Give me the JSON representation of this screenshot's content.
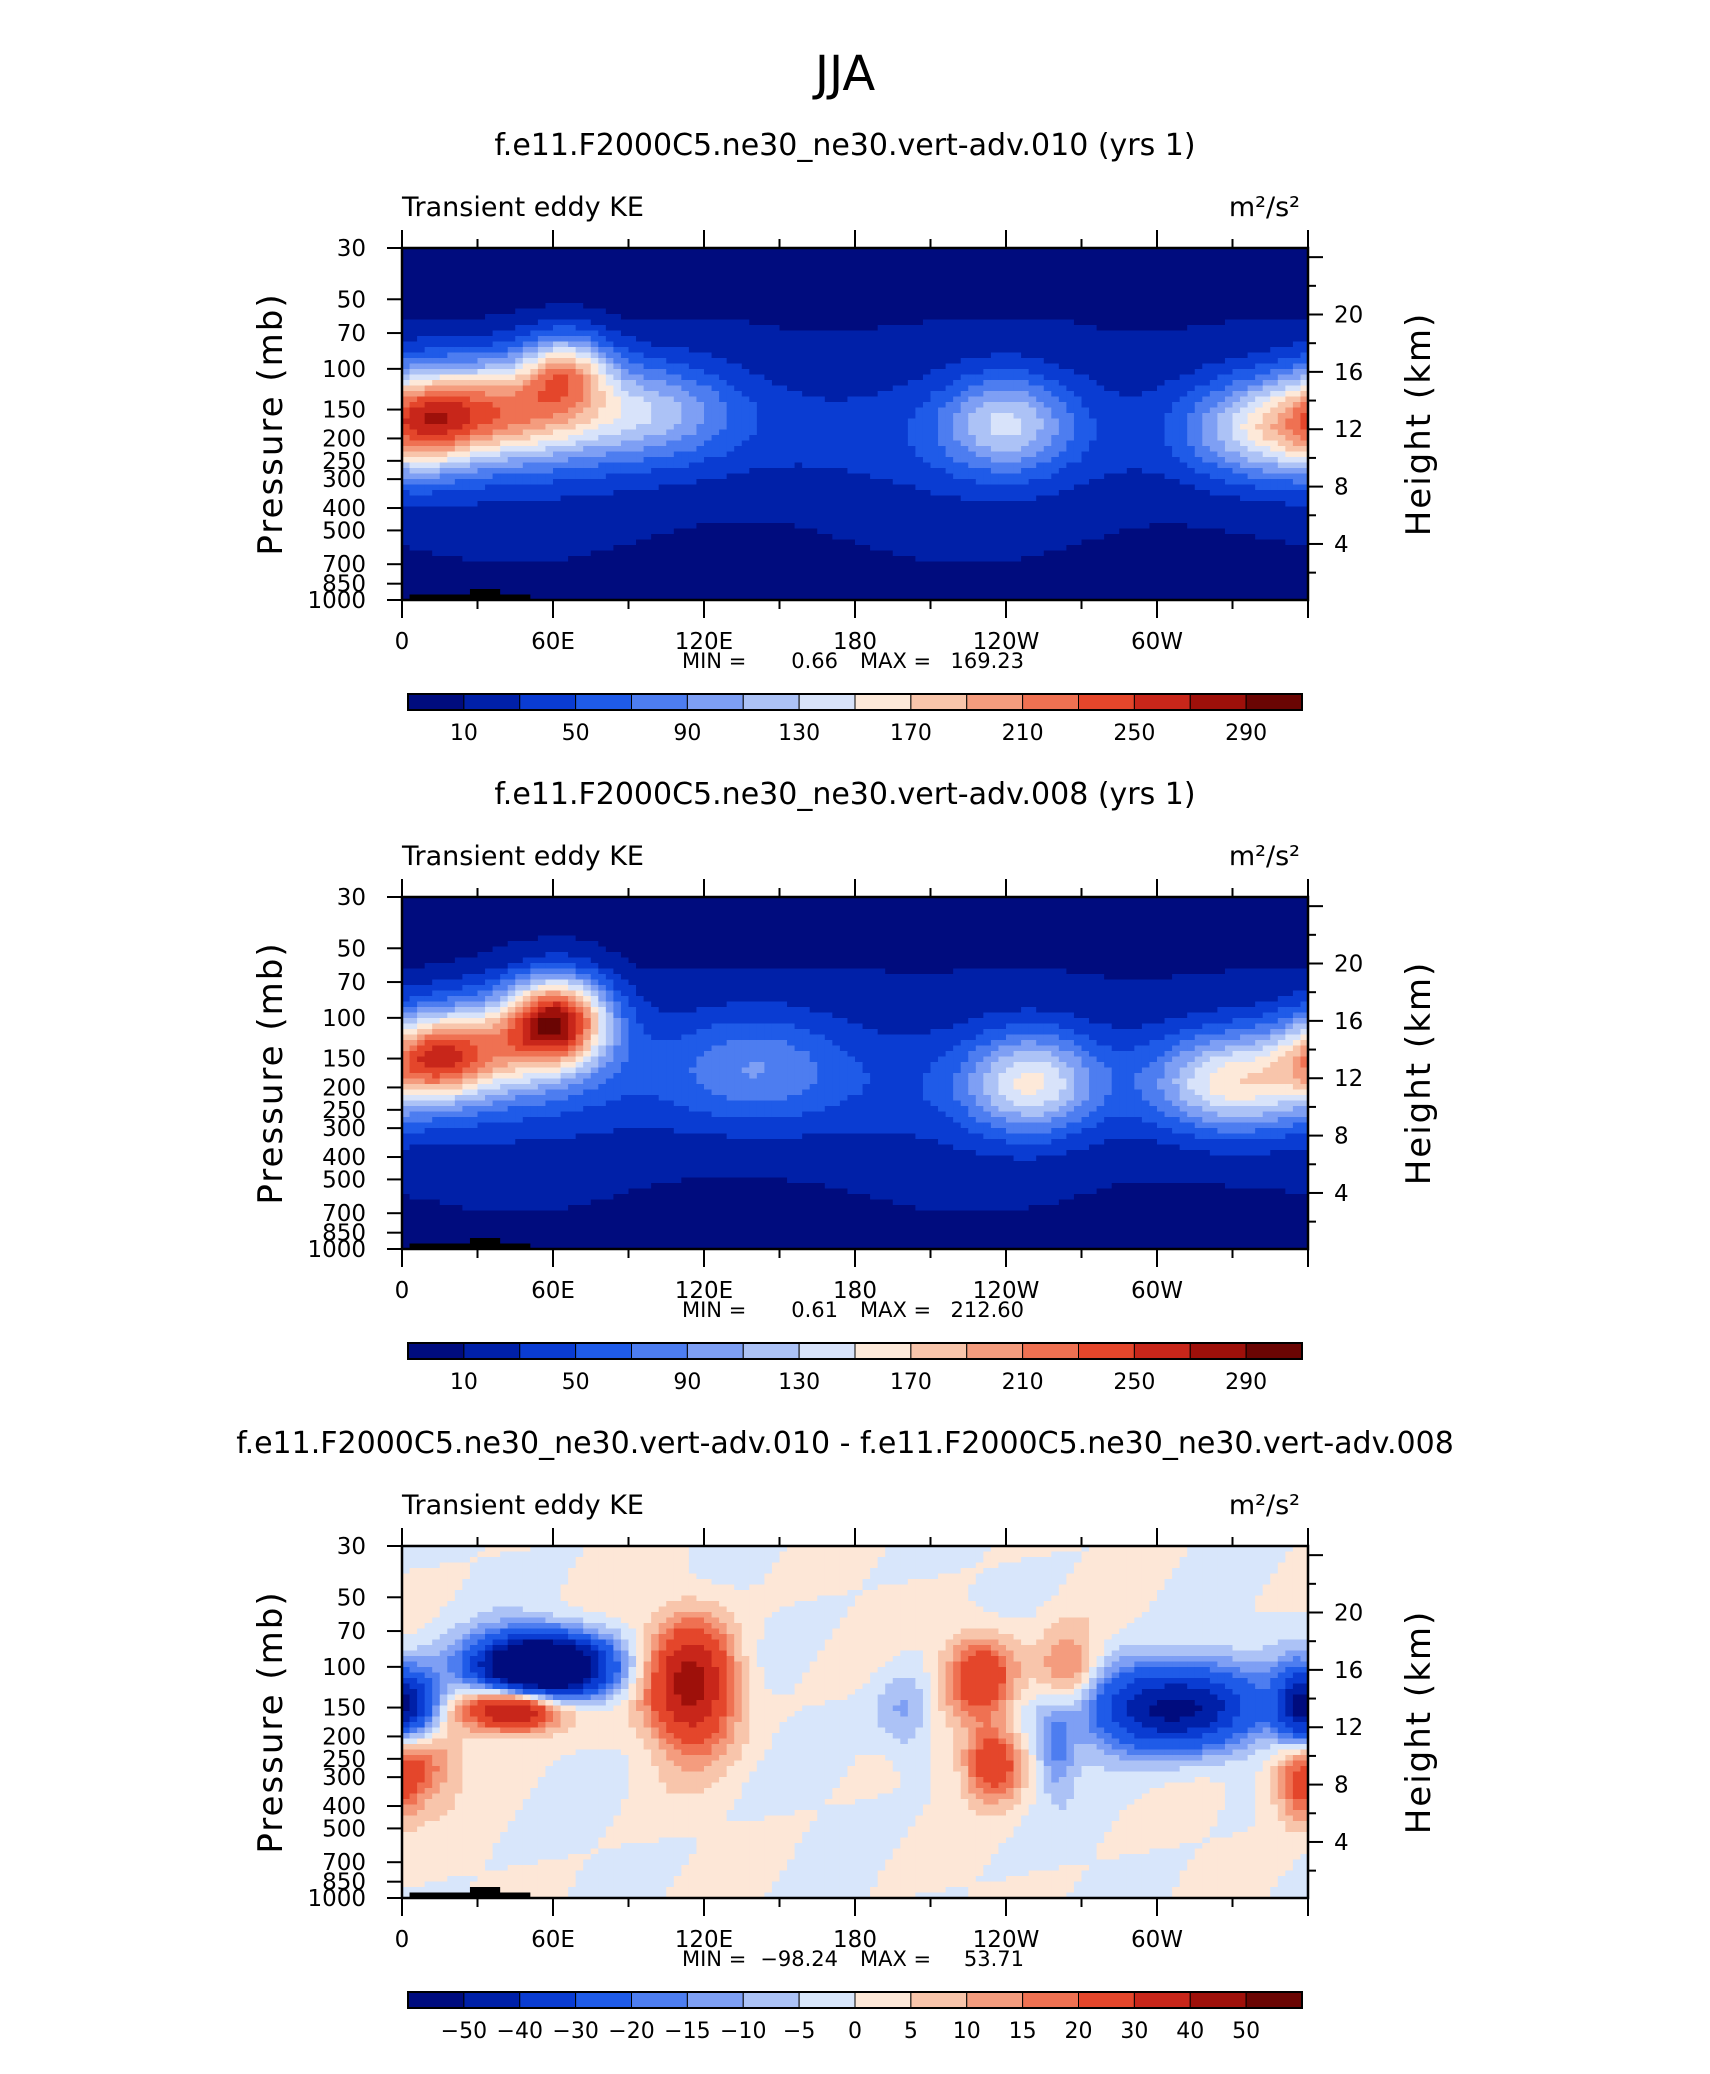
{
  "page_title": "JJA",
  "chart_data": [
    {
      "type": "heatmap",
      "title": "f.e11.F2000C5.ne30_ne30.vert-adv.010 (yrs 1)",
      "subtitle_left": "Transient eddy KE",
      "units": "m²/s²",
      "ylabel": "Pressure (mb)",
      "ylabel_right": "Height (km)",
      "x_ticks": [
        "0",
        "60E",
        "120E",
        "180",
        "120W",
        "60W"
      ],
      "y_ticks": [
        "30",
        "50",
        "70",
        "100",
        "150",
        "200",
        "250",
        "300",
        "400",
        "500",
        "700",
        "850",
        "1000"
      ],
      "y_ticks_right": [
        "20",
        "16",
        "12",
        "8",
        "4"
      ],
      "min_label": "MIN =",
      "min_value": "0.66",
      "max_label": "MAX =",
      "max_value": "169.23",
      "colorbar_labels": [
        "10",
        "50",
        "90",
        "130",
        "170",
        "210",
        "250",
        "290"
      ],
      "zlim": [
        0,
        300
      ],
      "features": [
        {
          "lon": 40,
          "p": 150,
          "value": 169,
          "sx": 28,
          "sy": 0.35
        },
        {
          "lon": 65,
          "p": 100,
          "value": 120,
          "sx": 12,
          "sy": 0.25
        },
        {
          "lon": 100,
          "p": 150,
          "value": 80,
          "sx": 25,
          "sy": 0.35
        },
        {
          "lon": 240,
          "p": 170,
          "value": 95,
          "sx": 18,
          "sy": 0.35
        },
        {
          "lon": 340,
          "p": 180,
          "value": 105,
          "sx": 20,
          "sy": 0.35
        },
        {
          "lon": 10,
          "p": 170,
          "value": 110,
          "sx": 15,
          "sy": 0.35
        }
      ]
    },
    {
      "type": "heatmap",
      "title": "f.e11.F2000C5.ne30_ne30.vert-adv.008 (yrs 1)",
      "subtitle_left": "Transient eddy KE",
      "units": "m²/s²",
      "ylabel": "Pressure (mb)",
      "ylabel_right": "Height (km)",
      "x_ticks": [
        "0",
        "60E",
        "120E",
        "180",
        "120W",
        "60W"
      ],
      "y_ticks": [
        "30",
        "50",
        "70",
        "100",
        "150",
        "200",
        "250",
        "300",
        "400",
        "500",
        "700",
        "850",
        "1000"
      ],
      "y_ticks_right": [
        "20",
        "16",
        "12",
        "8",
        "4"
      ],
      "min_label": "MIN =",
      "min_value": "0.61",
      "max_label": "MAX =",
      "max_value": "212.60",
      "colorbar_labels": [
        "10",
        "50",
        "90",
        "130",
        "170",
        "210",
        "250",
        "290"
      ],
      "zlim": [
        0,
        300
      ],
      "features": [
        {
          "lon": 62,
          "p": 100,
          "value": 212,
          "sx": 14,
          "sy": 0.3
        },
        {
          "lon": 12,
          "p": 150,
          "value": 150,
          "sx": 16,
          "sy": 0.3
        },
        {
          "lon": 40,
          "p": 130,
          "value": 120,
          "sx": 25,
          "sy": 0.35
        },
        {
          "lon": 250,
          "p": 190,
          "value": 115,
          "sx": 18,
          "sy": 0.35
        },
        {
          "lon": 330,
          "p": 190,
          "value": 130,
          "sx": 22,
          "sy": 0.35
        },
        {
          "lon": 140,
          "p": 160,
          "value": 60,
          "sx": 25,
          "sy": 0.4
        }
      ]
    },
    {
      "type": "heatmap",
      "title": "f.e11.F2000C5.ne30_ne30.vert-adv.010 - f.e11.F2000C5.ne30_ne30.vert-adv.008",
      "subtitle_left": "Transient eddy KE",
      "units": "m²/s²",
      "ylabel": "Pressure (mb)",
      "ylabel_right": "Height (km)",
      "x_ticks": [
        "0",
        "60E",
        "120E",
        "180",
        "120W",
        "60W"
      ],
      "y_ticks": [
        "30",
        "50",
        "70",
        "100",
        "150",
        "200",
        "250",
        "300",
        "400",
        "500",
        "700",
        "850",
        "1000"
      ],
      "y_ticks_right": [
        "20",
        "16",
        "12",
        "8",
        "4"
      ],
      "min_label": "MIN =",
      "min_value": "−98.24",
      "max_label": "MAX =",
      "max_value": "53.71",
      "colorbar_labels": [
        "−50",
        "−40",
        "−30",
        "−20",
        "−15",
        "−10",
        "−5",
        "0",
        "5",
        "10",
        "15",
        "20",
        "30",
        "40",
        "50"
      ],
      "zlim": [
        -60,
        60
      ],
      "features": [
        {
          "lon": 55,
          "p": 100,
          "value": -98,
          "sx": 18,
          "sy": 0.22
        },
        {
          "lon": 5,
          "p": 150,
          "value": -40,
          "sx": 8,
          "sy": 0.25
        },
        {
          "lon": 45,
          "p": 150,
          "value": 54,
          "sx": 14,
          "sy": 0.16
        },
        {
          "lon": 115,
          "p": 120,
          "value": 45,
          "sx": 12,
          "sy": 0.45
        },
        {
          "lon": 230,
          "p": 110,
          "value": 30,
          "sx": 10,
          "sy": 0.3
        },
        {
          "lon": 235,
          "p": 260,
          "value": 30,
          "sx": 8,
          "sy": 0.25
        },
        {
          "lon": 265,
          "p": 110,
          "value": 22,
          "sx": 9,
          "sy": 0.3
        },
        {
          "lon": 305,
          "p": 150,
          "value": -55,
          "sx": 25,
          "sy": 0.3
        },
        {
          "lon": 355,
          "p": 150,
          "value": -30,
          "sx": 6,
          "sy": 0.3
        },
        {
          "lon": 357,
          "p": 300,
          "value": 25,
          "sx": 8,
          "sy": 0.3
        },
        {
          "lon": 260,
          "p": 230,
          "value": -15,
          "sx": 5,
          "sy": 0.3
        },
        {
          "lon": 200,
          "p": 160,
          "value": -12,
          "sx": 8,
          "sy": 0.3
        },
        {
          "lon": 10,
          "p": 250,
          "value": 15,
          "sx": 10,
          "sy": 0.3
        }
      ]
    }
  ],
  "colorscales": {
    "blue_red": [
      "#000c7e",
      "#0020a8",
      "#0a3cd2",
      "#1f5be8",
      "#4d7df0",
      "#7e9ff4",
      "#acc2f6",
      "#d8e3fa",
      "#fde9d9",
      "#f8c5ab",
      "#f49c7e",
      "#ef7152",
      "#e4462b",
      "#c8261a",
      "#9e100a",
      "#6a0503"
    ],
    "diff": [
      "#000c7e",
      "#0020a8",
      "#0a3cd2",
      "#1f5be8",
      "#4d7df0",
      "#7e9ff4",
      "#acc2f6",
      "#d8e6fb",
      "#fde7d7",
      "#f8c5ab",
      "#f49c7e",
      "#ef7152",
      "#e4462b",
      "#c8261a",
      "#9e100a",
      "#6a0503"
    ]
  }
}
